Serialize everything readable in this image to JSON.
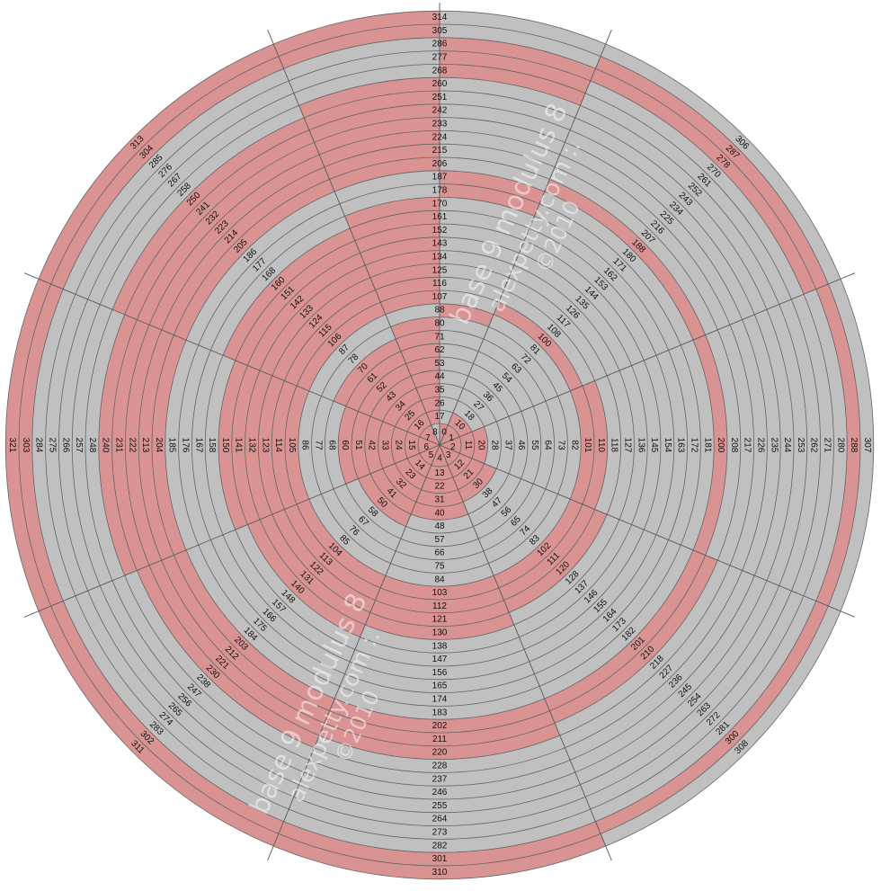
{
  "colors": {
    "pink": "#d99392",
    "gray": "#c0c0c0",
    "ring_line": "#646464",
    "ray_line": "#5a5a5a"
  },
  "watermark": {
    "line1": "base 9 modulus 8",
    "line2": "alexpetty.com :.",
    "line3": "©2010"
  },
  "center_labels": [
    "0",
    "1",
    "2",
    "3",
    "4",
    "5",
    "6",
    "7",
    "8"
  ],
  "center_fill": {
    "top_left_half": "G",
    "rest": "P"
  },
  "rays": [
    {
      "direction": "up",
      "labels": [
        "17",
        "26",
        "35",
        "44",
        "53",
        "62",
        "71",
        "80",
        "88",
        "107",
        "116",
        "125",
        "134",
        "143",
        "152",
        "161",
        "170",
        "178",
        "187",
        "206",
        "215",
        "224",
        "233",
        "242",
        "251",
        "260",
        "268",
        "277",
        "286",
        "305",
        "314"
      ],
      "fill_left_half": "PPPPPPPPGPPPPPPPPGGPPPPPPPGGGPP",
      "fill_right_half": "GGGGGGGGPGGGGGGGGPPGGGGGGGPPPGG"
    },
    {
      "direction": "up-right",
      "labels": [
        "10",
        "18",
        "27",
        "36",
        "45",
        "54",
        "63",
        "72",
        "81",
        "100",
        "108",
        "117",
        "126",
        "135",
        "144",
        "153",
        "162",
        "171",
        "180",
        "188",
        "207",
        "216",
        "225",
        "234",
        "243",
        "252",
        "261",
        "270",
        "278",
        "287",
        "306"
      ],
      "fill": "PGGGGGGGGPGGGGGGGGGPGGGGGGGGPPG"
    },
    {
      "direction": "right",
      "labels": [
        "11",
        "20",
        "28",
        "37",
        "46",
        "55",
        "64",
        "73",
        "82",
        "101",
        "110",
        "118",
        "127",
        "136",
        "145",
        "154",
        "163",
        "172",
        "181",
        "200",
        "208",
        "217",
        "226",
        "235",
        "244",
        "253",
        "262",
        "271",
        "280",
        "288",
        "307"
      ],
      "fill": "PPGGGGGGGPPGGGGGGGGPGGGGGGGGGPG"
    },
    {
      "direction": "down-right",
      "labels": [
        "12",
        "21",
        "30",
        "38",
        "47",
        "56",
        "65",
        "74",
        "83",
        "102",
        "111",
        "120",
        "128",
        "137",
        "146",
        "155",
        "164",
        "173",
        "182",
        "201",
        "210",
        "218",
        "227",
        "236",
        "245",
        "254",
        "263",
        "272",
        "281",
        "300",
        "308"
      ],
      "fill": "PPPGGGGGGPPPGGGGGGGPPGGGGGGGGPG"
    },
    {
      "direction": "down",
      "labels": [
        "13",
        "22",
        "31",
        "40",
        "48",
        "57",
        "66",
        "75",
        "84",
        "103",
        "112",
        "121",
        "130",
        "138",
        "147",
        "156",
        "165",
        "174",
        "183",
        "202",
        "211",
        "220",
        "228",
        "237",
        "246",
        "255",
        "264",
        "273",
        "282",
        "301",
        "310"
      ],
      "fill": "PPPPGGGGGPPPPGGGGGGPPPGGGGGGGPP"
    },
    {
      "direction": "down-left",
      "labels": [
        "14",
        "23",
        "32",
        "41",
        "50",
        "58",
        "67",
        "76",
        "85",
        "104",
        "113",
        "122",
        "131",
        "140",
        "148",
        "157",
        "166",
        "175",
        "184",
        "203",
        "212",
        "221",
        "230",
        "238",
        "247",
        "256",
        "265",
        "274",
        "283",
        "302",
        "311"
      ],
      "fill": "PPPPPGGGGPPPPPGGGGGPPPPGGGGGGPP"
    },
    {
      "direction": "left",
      "labels": [
        "15",
        "24",
        "33",
        "42",
        "51",
        "60",
        "68",
        "77",
        "86",
        "105",
        "114",
        "123",
        "132",
        "141",
        "150",
        "158",
        "167",
        "176",
        "185",
        "204",
        "213",
        "222",
        "231",
        "240",
        "248",
        "257",
        "266",
        "275",
        "284",
        "303",
        "321"
      ],
      "fill": "PPPPPPGGGPPPPPPGGGGPPPPPGGGGGPP"
    },
    {
      "direction": "up-left",
      "labels": [
        "16",
        "25",
        "34",
        "43",
        "52",
        "61",
        "70",
        "78",
        "87",
        "106",
        "115",
        "124",
        "133",
        "142",
        "151",
        "160",
        "168",
        "177",
        "186",
        "205",
        "214",
        "223",
        "232",
        "241",
        "250",
        "258",
        "267",
        "276",
        "285",
        "304",
        "313"
      ],
      "fill": "PPPPPPPGGPPPPPPPGGGPPPPPPGGGGPP"
    }
  ]
}
